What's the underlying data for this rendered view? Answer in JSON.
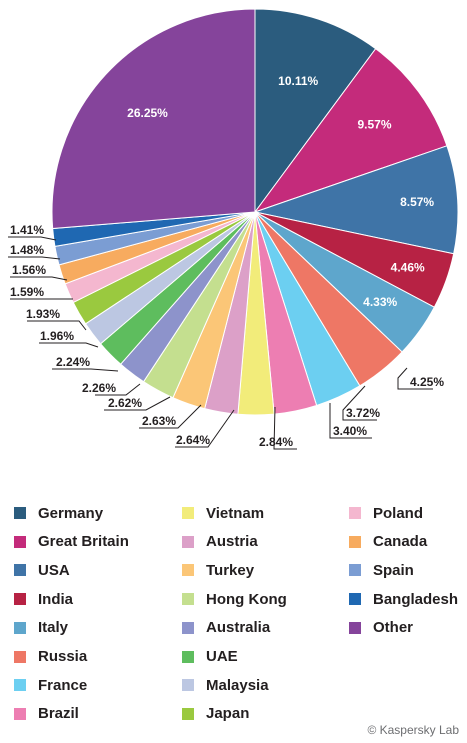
{
  "chart_data": {
    "type": "pie",
    "start": "12 o'clock",
    "direction": "clockwise",
    "slices": [
      {
        "name": "Germany",
        "value": 10.11,
        "label": "10.11%",
        "color": "#2b5c7e"
      },
      {
        "name": "Great Britain",
        "value": 9.57,
        "label": "9.57%",
        "color": "#c42b7b"
      },
      {
        "name": "USA",
        "value": 8.57,
        "label": "8.57%",
        "color": "#3f74a7"
      },
      {
        "name": "India",
        "value": 4.46,
        "label": "4.46%",
        "color": "#b72244"
      },
      {
        "name": "Italy",
        "value": 4.33,
        "label": "4.33%",
        "color": "#5ea6cc"
      },
      {
        "name": "Russia",
        "value": 4.25,
        "label": "4.25%",
        "color": "#ee7765"
      },
      {
        "name": "France",
        "value": 3.72,
        "label": "3.72%",
        "color": "#6ccff1"
      },
      {
        "name": "Brazil",
        "value": 3.4,
        "label": "3.40%",
        "color": "#ed7eb2"
      },
      {
        "name": "Vietnam",
        "value": 2.84,
        "label": "2.84%",
        "color": "#f2ec7a"
      },
      {
        "name": "Austria",
        "value": 2.64,
        "label": "2.64%",
        "color": "#dca0c8"
      },
      {
        "name": "Turkey",
        "value": 2.63,
        "label": "2.63%",
        "color": "#fbc677"
      },
      {
        "name": "Hong Kong",
        "value": 2.62,
        "label": "2.62%",
        "color": "#c4df8f"
      },
      {
        "name": "Australia",
        "value": 2.26,
        "label": "2.26%",
        "color": "#8d93cb"
      },
      {
        "name": "UAE",
        "value": 2.24,
        "label": "2.24%",
        "color": "#5ebd5e"
      },
      {
        "name": "Malaysia",
        "value": 1.96,
        "label": "1.96%",
        "color": "#bcc7e2"
      },
      {
        "name": "Japan",
        "value": 1.93,
        "label": "1.93%",
        "color": "#9ac93f"
      },
      {
        "name": "Poland",
        "value": 1.59,
        "label": "1.59%",
        "color": "#f4b7cf"
      },
      {
        "name": "Canada",
        "value": 1.56,
        "label": "1.56%",
        "color": "#f7ab5f"
      },
      {
        "name": "Spain",
        "value": 1.48,
        "label": "1.48%",
        "color": "#7b9dd3"
      },
      {
        "name": "Bangladesh",
        "value": 1.41,
        "label": "1.41%",
        "color": "#1f68b2"
      },
      {
        "name": "Other",
        "value": 26.25,
        "label": "26.25%",
        "color": "#85449b"
      }
    ]
  },
  "credit": "© Kaspersky Lab"
}
